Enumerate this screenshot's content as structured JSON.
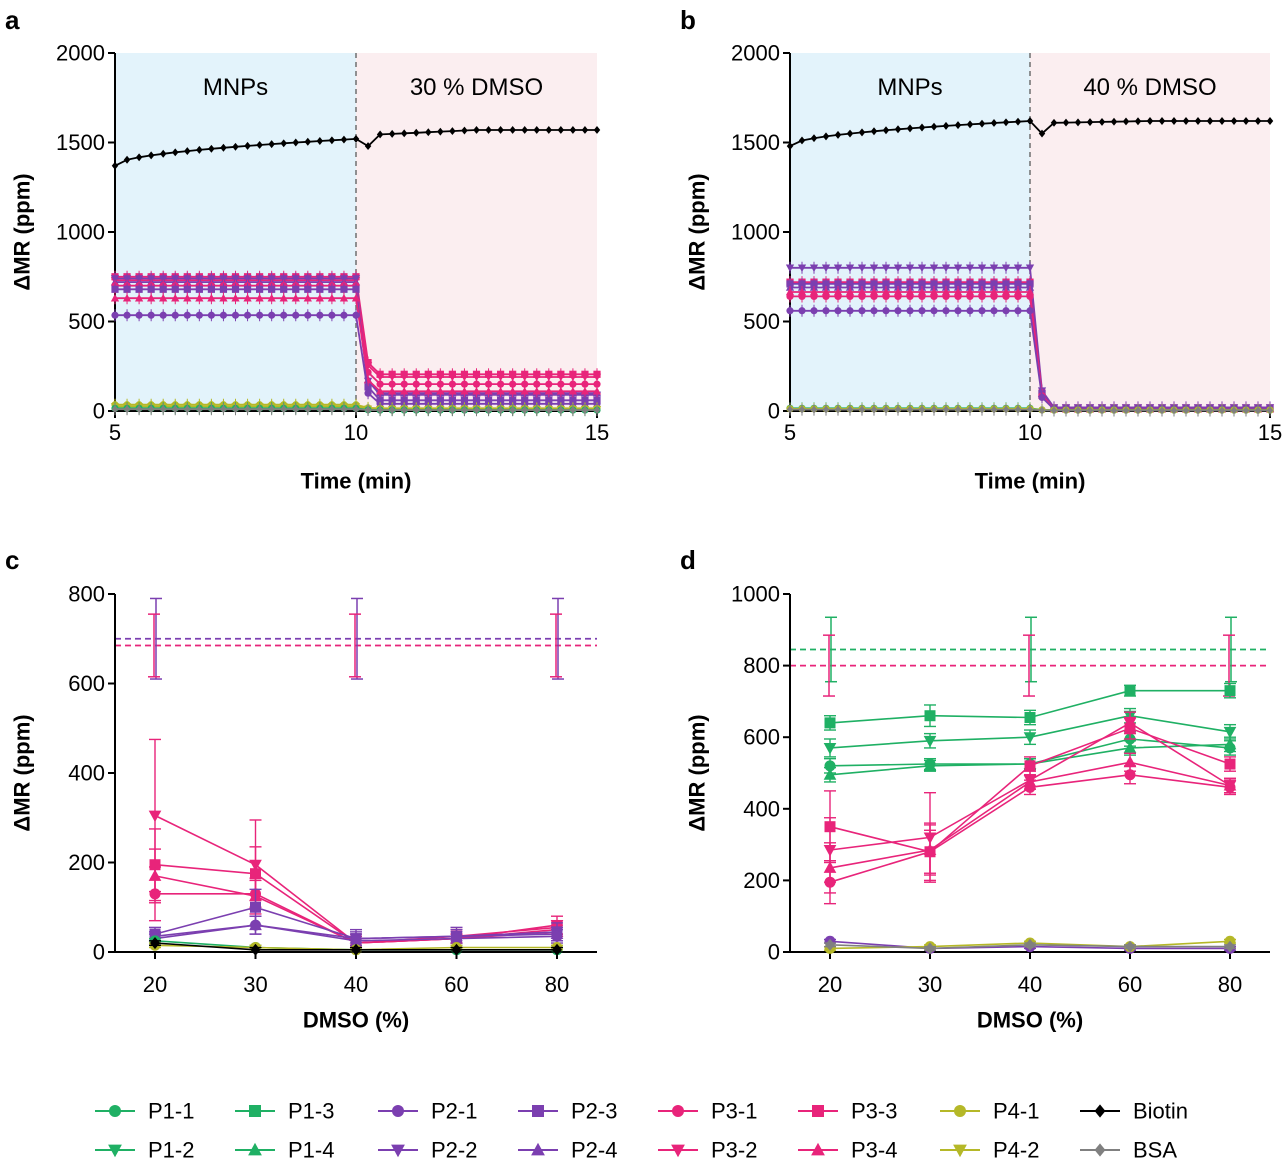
{
  "chart_data": [
    {
      "panel": "a",
      "type": "line",
      "xlabel": "Time (min)",
      "ylabel": "ΔMR (ppm)",
      "xlim": [
        5,
        15
      ],
      "ylim": [
        0,
        2000
      ],
      "x_ticks": [
        "5",
        "10",
        "15"
      ],
      "y_ticks": [
        "0",
        "500",
        "1000",
        "1500",
        "2000"
      ],
      "regions": [
        {
          "label": "MNPs",
          "x": [
            5,
            10
          ],
          "color": "#e3f3fb"
        },
        {
          "label": "30 % DMSO",
          "x": [
            10,
            15
          ],
          "color": "#fbeef0"
        }
      ],
      "series": [
        {
          "name": "Biotin",
          "color": "#000000",
          "marker": "diamond",
          "before": [
            1370,
            1520
          ],
          "dip": 1480,
          "after": [
            1545,
            1570
          ]
        },
        {
          "name": "P3-3",
          "color": "#e8247a",
          "marker": "square",
          "before": 750,
          "after": 205
        },
        {
          "name": "P3-2",
          "color": "#e8247a",
          "marker": "triangle-down",
          "before": 730,
          "after": 190
        },
        {
          "name": "P2-2",
          "color": "#7b3fb0",
          "marker": "triangle-down",
          "before": 740,
          "after": 90
        },
        {
          "name": "P2-4",
          "color": "#7b3fb0",
          "marker": "triangle-up",
          "before": 720,
          "after": 100
        },
        {
          "name": "P3-1",
          "color": "#e8247a",
          "marker": "circle",
          "before": 700,
          "after": 150
        },
        {
          "name": "P2-3",
          "color": "#7b3fb0",
          "marker": "square",
          "before": 680,
          "after": 60
        },
        {
          "name": "P3-4",
          "color": "#e8247a",
          "marker": "triangle-up",
          "before": 630,
          "after": 110
        },
        {
          "name": "P2-1",
          "color": "#7b3fb0",
          "marker": "circle",
          "before": 535,
          "after": 40
        },
        {
          "name": "P4-1",
          "color": "#b5b828",
          "marker": "circle",
          "before": 35,
          "after": 15
        },
        {
          "name": "P4-2",
          "color": "#b5b828",
          "marker": "triangle-down",
          "before": 25,
          "after": 10
        },
        {
          "name": "P1-1",
          "color": "#1fb064",
          "marker": "circle",
          "before": 15,
          "after": 5
        },
        {
          "name": "BSA",
          "color": "#808080",
          "marker": "diamond",
          "before": 10,
          "after": 5
        }
      ]
    },
    {
      "panel": "b",
      "type": "line",
      "xlabel": "Time (min)",
      "ylabel": "ΔMR (ppm)",
      "xlim": [
        5,
        15
      ],
      "ylim": [
        0,
        2000
      ],
      "x_ticks": [
        "5",
        "10",
        "15"
      ],
      "y_ticks": [
        "0",
        "500",
        "1000",
        "1500",
        "2000"
      ],
      "regions": [
        {
          "label": "MNPs",
          "x": [
            5,
            10
          ],
          "color": "#e3f3fb"
        },
        {
          "label": "40 % DMSO",
          "x": [
            10,
            15
          ],
          "color": "#fbeef0"
        }
      ],
      "series": [
        {
          "name": "Biotin",
          "color": "#000000",
          "marker": "diamond",
          "before": [
            1480,
            1620
          ],
          "dip": 1550,
          "after": [
            1610,
            1620
          ]
        },
        {
          "name": "P2-2",
          "color": "#7b3fb0",
          "marker": "triangle-down",
          "before": 800,
          "after": 20
        },
        {
          "name": "P3-3",
          "color": "#e8247a",
          "marker": "square",
          "before": 720,
          "after": 15
        },
        {
          "name": "P2-3",
          "color": "#7b3fb0",
          "marker": "square",
          "before": 710,
          "after": 15
        },
        {
          "name": "P2-4",
          "color": "#7b3fb0",
          "marker": "triangle-up",
          "before": 690,
          "after": 15
        },
        {
          "name": "P3-4",
          "color": "#e8247a",
          "marker": "triangle-up",
          "before": 665,
          "after": 10
        },
        {
          "name": "P3-1",
          "color": "#e8247a",
          "marker": "circle",
          "before": 640,
          "after": 10
        },
        {
          "name": "P2-1",
          "color": "#7b3fb0",
          "marker": "circle",
          "before": 560,
          "after": 10
        },
        {
          "name": "P1-1",
          "color": "#1fb064",
          "marker": "circle",
          "before": 15,
          "after": 5
        },
        {
          "name": "P4-1",
          "color": "#b5b828",
          "marker": "circle",
          "before": 12,
          "after": 5
        },
        {
          "name": "BSA",
          "color": "#808080",
          "marker": "diamond",
          "before": 8,
          "after": 3
        }
      ]
    },
    {
      "panel": "c",
      "type": "line",
      "xlabel": "DMSO (%)",
      "ylabel": "ΔMR (ppm)",
      "categories": [
        "20",
        "30",
        "40",
        "60",
        "80"
      ],
      "ylim": [
        0,
        800
      ],
      "y_ticks": [
        "0",
        "200",
        "400",
        "600",
        "800"
      ],
      "reference_lines": [
        {
          "value": 700,
          "color": "#7b3fb0",
          "error": 90
        },
        {
          "value": 685,
          "color": "#e8247a",
          "error": 70
        }
      ],
      "series": [
        {
          "name": "P3-2",
          "color": "#e8247a",
          "marker": "triangle-down",
          "values": [
            305,
            195,
            20,
            30,
            60
          ],
          "errors": [
            170,
            100,
            20,
            20,
            20
          ]
        },
        {
          "name": "P3-3",
          "color": "#e8247a",
          "marker": "square",
          "values": [
            195,
            175,
            20,
            35,
            55
          ],
          "errors": [
            80,
            60,
            15,
            15,
            15
          ]
        },
        {
          "name": "P3-4",
          "color": "#e8247a",
          "marker": "triangle-up",
          "values": [
            170,
            125,
            20,
            30,
            45
          ],
          "errors": [
            60,
            40,
            10,
            10,
            10
          ]
        },
        {
          "name": "P3-1",
          "color": "#e8247a",
          "marker": "circle",
          "values": [
            130,
            130,
            20,
            30,
            50
          ],
          "errors": [
            60,
            30,
            10,
            10,
            10
          ]
        },
        {
          "name": "P2-3",
          "color": "#7b3fb0",
          "marker": "square",
          "values": [
            40,
            100,
            30,
            35,
            45
          ],
          "errors": [
            15,
            40,
            20,
            20,
            20
          ]
        },
        {
          "name": "P2-4",
          "color": "#7b3fb0",
          "marker": "triangle-up",
          "values": [
            35,
            60,
            30,
            35,
            40
          ],
          "errors": [
            10,
            20,
            15,
            15,
            15
          ]
        },
        {
          "name": "P2-1",
          "color": "#7b3fb0",
          "marker": "circle",
          "values": [
            30,
            60,
            25,
            30,
            35
          ],
          "errors": [
            10,
            20,
            15,
            15,
            15
          ]
        },
        {
          "name": "P1-1",
          "color": "#1fb064",
          "marker": "circle",
          "values": [
            25,
            10,
            5,
            5,
            5
          ],
          "errors": [
            5,
            5,
            5,
            5,
            5
          ]
        },
        {
          "name": "P4-1",
          "color": "#b5b828",
          "marker": "circle",
          "values": [
            15,
            10,
            5,
            10,
            10
          ],
          "errors": [
            5,
            5,
            5,
            5,
            5
          ]
        },
        {
          "name": "Biotin",
          "color": "#000000",
          "marker": "diamond",
          "values": [
            20,
            5,
            5,
            5,
            5
          ],
          "errors": [
            5,
            5,
            5,
            5,
            5
          ]
        }
      ]
    },
    {
      "panel": "d",
      "type": "line",
      "xlabel": "DMSO (%)",
      "ylabel": "ΔMR (ppm)",
      "categories": [
        "20",
        "30",
        "40",
        "60",
        "80"
      ],
      "ylim": [
        0,
        1000
      ],
      "y_ticks": [
        "0",
        "200",
        "400",
        "600",
        "800",
        "1000"
      ],
      "reference_lines": [
        {
          "value": 845,
          "color": "#1fb064",
          "error": 90
        },
        {
          "value": 800,
          "color": "#e8247a",
          "error": 85
        }
      ],
      "series": [
        {
          "name": "P1-3",
          "color": "#1fb064",
          "marker": "square",
          "values": [
            640,
            660,
            655,
            730,
            730
          ],
          "errors": [
            20,
            30,
            20,
            15,
            20
          ]
        },
        {
          "name": "P1-2",
          "color": "#1fb064",
          "marker": "triangle-down",
          "values": [
            570,
            590,
            600,
            660,
            615
          ],
          "errors": [
            25,
            20,
            20,
            20,
            20
          ]
        },
        {
          "name": "P1-1",
          "color": "#1fb064",
          "marker": "circle",
          "values": [
            520,
            525,
            525,
            595,
            570
          ],
          "errors": [
            20,
            15,
            15,
            20,
            20
          ]
        },
        {
          "name": "P1-4",
          "color": "#1fb064",
          "marker": "triangle-up",
          "values": [
            495,
            520,
            525,
            570,
            580
          ],
          "errors": [
            20,
            15,
            15,
            20,
            20
          ]
        },
        {
          "name": "P3-3",
          "color": "#e8247a",
          "marker": "square",
          "values": [
            350,
            280,
            520,
            625,
            525
          ],
          "errors": [
            100,
            80,
            25,
            30,
            20
          ]
        },
        {
          "name": "P3-2",
          "color": "#e8247a",
          "marker": "triangle-down",
          "values": [
            285,
            320,
            480,
            640,
            465
          ],
          "errors": [
            90,
            125,
            25,
            30,
            20
          ]
        },
        {
          "name": "P3-4",
          "color": "#e8247a",
          "marker": "triangle-up",
          "values": [
            235,
            285,
            475,
            530,
            465
          ],
          "errors": [
            70,
            70,
            20,
            25,
            20
          ]
        },
        {
          "name": "P3-1",
          "color": "#e8247a",
          "marker": "circle",
          "values": [
            195,
            280,
            460,
            495,
            460
          ],
          "errors": [
            60,
            60,
            20,
            25,
            20
          ]
        },
        {
          "name": "P2-1",
          "color": "#7b3fb0",
          "marker": "circle",
          "values": [
            30,
            10,
            15,
            10,
            10
          ],
          "errors": [
            5,
            5,
            5,
            5,
            5
          ]
        },
        {
          "name": "P4-1",
          "color": "#b5b828",
          "marker": "circle",
          "values": [
            10,
            15,
            25,
            15,
            30
          ],
          "errors": [
            5,
            5,
            5,
            5,
            5
          ]
        },
        {
          "name": "BSA",
          "color": "#808080",
          "marker": "diamond",
          "values": [
            20,
            10,
            20,
            15,
            15
          ],
          "errors": [
            5,
            5,
            5,
            5,
            5
          ]
        }
      ]
    }
  ],
  "legend": {
    "items": [
      {
        "name": "P1-1",
        "color": "#1fb064",
        "marker": "circle"
      },
      {
        "name": "P1-3",
        "color": "#1fb064",
        "marker": "square"
      },
      {
        "name": "P2-1",
        "color": "#7b3fb0",
        "marker": "circle"
      },
      {
        "name": "P2-3",
        "color": "#7b3fb0",
        "marker": "square"
      },
      {
        "name": "P3-1",
        "color": "#e8247a",
        "marker": "circle"
      },
      {
        "name": "P3-3",
        "color": "#e8247a",
        "marker": "square"
      },
      {
        "name": "P4-1",
        "color": "#b5b828",
        "marker": "circle"
      },
      {
        "name": "Biotin",
        "color": "#000000",
        "marker": "diamond"
      },
      {
        "name": "P1-2",
        "color": "#1fb064",
        "marker": "triangle-down"
      },
      {
        "name": "P1-4",
        "color": "#1fb064",
        "marker": "triangle-up"
      },
      {
        "name": "P2-2",
        "color": "#7b3fb0",
        "marker": "triangle-down"
      },
      {
        "name": "P2-4",
        "color": "#7b3fb0",
        "marker": "triangle-up"
      },
      {
        "name": "P3-2",
        "color": "#e8247a",
        "marker": "triangle-down"
      },
      {
        "name": "P3-4",
        "color": "#e8247a",
        "marker": "triangle-up"
      },
      {
        "name": "P4-2",
        "color": "#b5b828",
        "marker": "triangle-down"
      },
      {
        "name": "BSA",
        "color": "#808080",
        "marker": "diamond"
      }
    ]
  }
}
